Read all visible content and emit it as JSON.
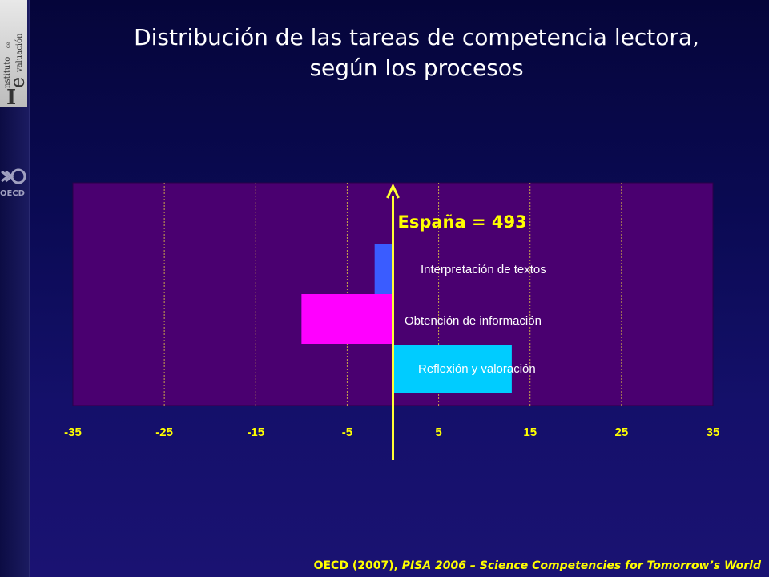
{
  "header": {
    "title_line1": "Distribución de las tareas de competencia lectora,",
    "title_line2": "según los procesos"
  },
  "sidebar": {
    "logo_text_top": "nstituto",
    "logo_text_de": "de",
    "logo_text_bottom": "valuación",
    "oecd_label": "OECD"
  },
  "footer": {
    "citation_plain": "OECD (2007), ",
    "citation_italic": "PISA 2006 – Science Competencies for Tomorrow’s World"
  },
  "chart_data": {
    "type": "bar",
    "orientation": "horizontal",
    "title": "",
    "xlabel": "",
    "ylabel": "",
    "xlim": [
      -35,
      35
    ],
    "x_ticks": [
      -35,
      -25,
      -15,
      -5,
      5,
      15,
      25,
      35
    ],
    "grid": true,
    "reference_line": {
      "value": 0,
      "label": "España = 493"
    },
    "categories": [
      "Interpretación de textos",
      "Obtención de información",
      "Reflexión y valoración"
    ],
    "values": [
      -2,
      -10,
      13
    ],
    "colors": [
      "#3a5cff",
      "#ff00ff",
      "#00ccff"
    ],
    "plot_background": "#4a0070",
    "axis_color": "#ffff33",
    "tick_label_color": "#ffff00"
  }
}
